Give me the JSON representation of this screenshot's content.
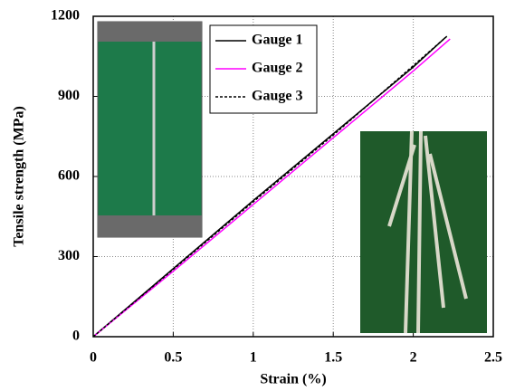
{
  "chart_data": {
    "type": "line",
    "xlabel": "Strain (%)",
    "ylabel": "Tensile strength (MPa)",
    "xlim": [
      0,
      2.5
    ],
    "xticks": [
      0,
      0.5,
      1,
      1.5,
      2,
      2.5
    ],
    "ylim": [
      0,
      1200
    ],
    "yticks": [
      0,
      300,
      600,
      900,
      1200
    ],
    "grid": true,
    "legend": "upper center",
    "series": [
      {
        "name": "Gauge 1",
        "color": "#000000",
        "style": "solid",
        "x": [
          0,
          0.5,
          1,
          1.5,
          2,
          2.2
        ],
        "values": [
          0,
          255,
          510,
          760,
          1010,
          1120
        ]
      },
      {
        "name": "Gauge 2",
        "color": "#ff00ff",
        "style": "solid",
        "x": [
          0,
          0.5,
          1,
          1.5,
          2,
          2.23
        ],
        "values": [
          0,
          245,
          495,
          745,
          995,
          1115
        ]
      },
      {
        "name": "Gauge 3",
        "color": "#000000",
        "style": "dashed",
        "x": [
          0,
          0.5,
          1,
          1.5,
          2,
          2.21
        ],
        "values": [
          0,
          252,
          505,
          755,
          1015,
          1125
        ]
      }
    ]
  }
}
